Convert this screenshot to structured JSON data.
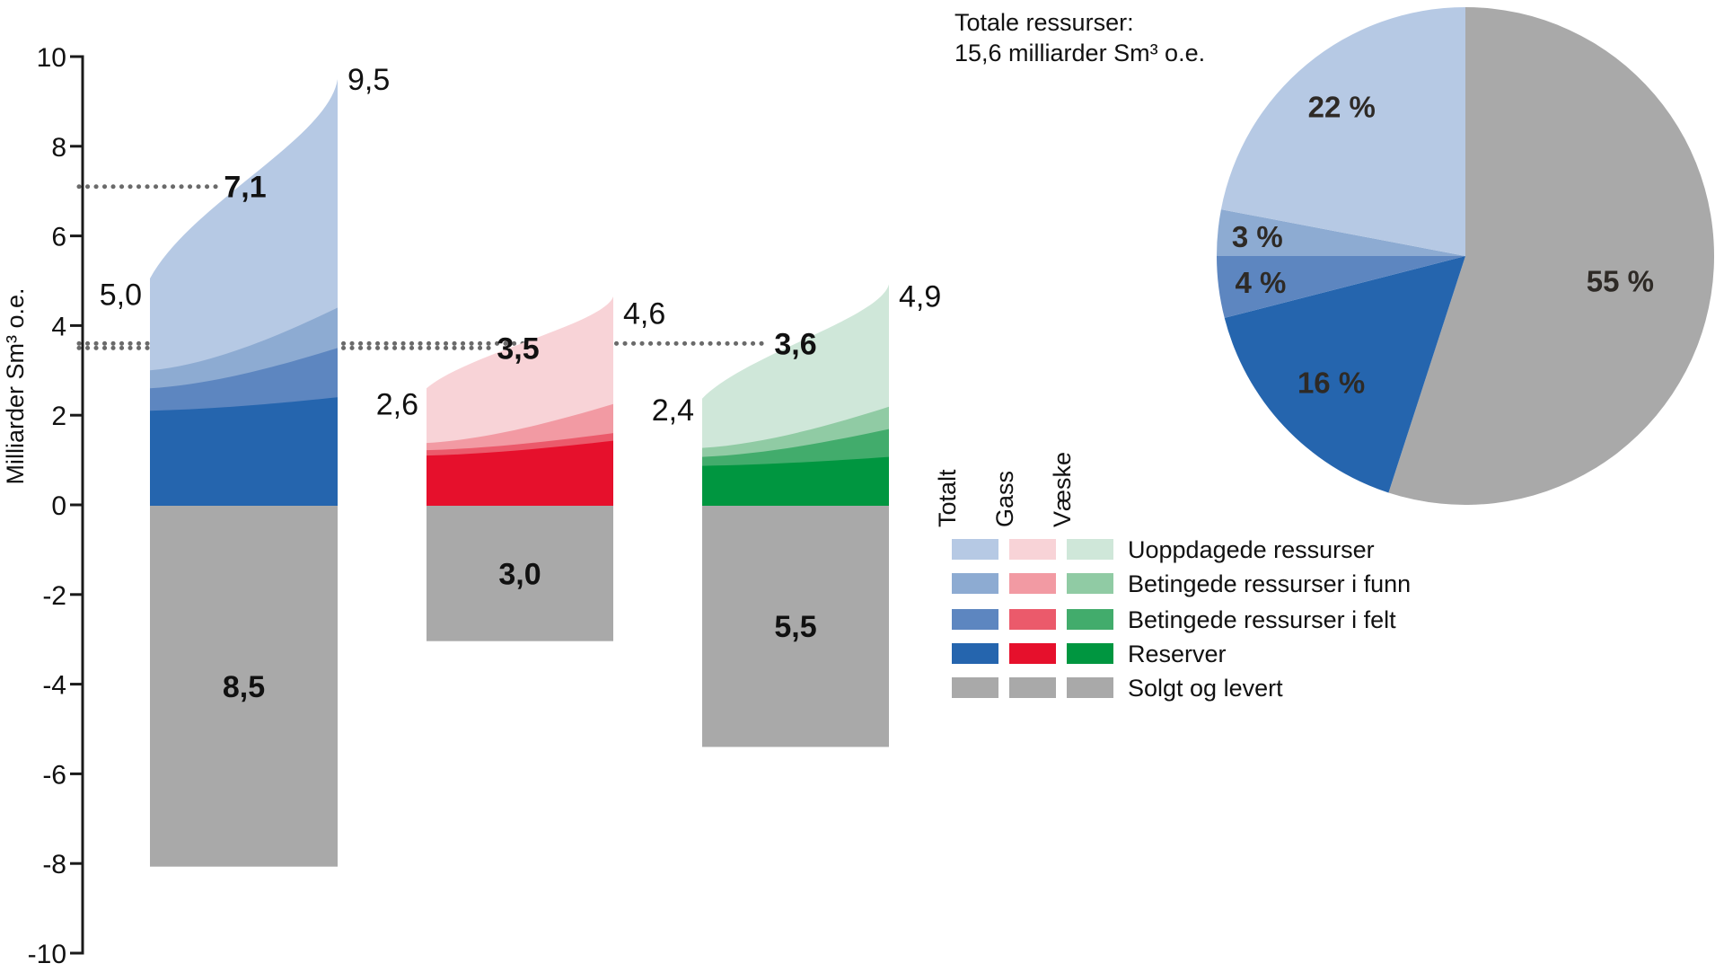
{
  "pie": {
    "title_line1": "Totale ressurser:",
    "title_line2": "15,6 milliarder Sm³ o.e.",
    "total_value": "15,6",
    "slices": [
      {
        "name": "Solgt og levert",
        "label": "55 %",
        "value": 55,
        "color": "#a9a9a9"
      },
      {
        "name": "Reserver",
        "label": "16 %",
        "value": 16,
        "color": "#2565ae"
      },
      {
        "name": "Betingede ressurser i felt",
        "label": "4 %",
        "value": 4,
        "color": "#5d86c0"
      },
      {
        "name": "Betingede ressurser i funn",
        "label": "3 %",
        "value": 3,
        "color": "#8dabd2"
      },
      {
        "name": "Uoppdagede ressurser",
        "label": "22 %",
        "value": 22,
        "color": "#b6c9e4"
      }
    ]
  },
  "legend": {
    "columns": [
      "Totalt",
      "Gass",
      "Væske"
    ],
    "rows": [
      {
        "label": "Uoppdagede ressurser",
        "colors": [
          "#b6c9e4",
          "#f8d3d7",
          "#cfe7d9"
        ]
      },
      {
        "label": "Betingede ressurser i funn",
        "colors": [
          "#8dabd2",
          "#f29aa3",
          "#90cba4"
        ]
      },
      {
        "label": "Betingede ressurser i felt",
        "colors": [
          "#5d86c0",
          "#eb5a6b",
          "#42ac6c"
        ]
      },
      {
        "label": "Reserver",
        "colors": [
          "#2565ae",
          "#e6102c",
          "#009640"
        ]
      },
      {
        "label": "Solgt og levert",
        "colors": [
          "#a9a9a9",
          "#a9a9a9",
          "#a9a9a9"
        ]
      }
    ]
  },
  "chart_data": {
    "type": "area",
    "ylabel": "Milliarder Sm³ o.e.",
    "y_axis": {
      "label": "Milliarder Sm³ o.e.",
      "min": -10,
      "max": 10,
      "step": 2,
      "tick_values": [
        10,
        8,
        6,
        4,
        2,
        0,
        -2,
        -4,
        -6,
        -8,
        -10
      ],
      "tick_labels": [
        "10",
        "8",
        "6",
        "4",
        "2",
        "0",
        "-2",
        "-4",
        "-6",
        "-8",
        "-10"
      ]
    },
    "dotted_line_color": "#6a6a6a",
    "sold_color": "#a9a9a9",
    "groups": [
      {
        "id": "totalt",
        "name": "Totalt",
        "low": 5.0,
        "low_label": "5,0",
        "expected": 7.1,
        "expected_label": "7,1",
        "high": 9.5,
        "high_label": "9,5",
        "sold": 8.5,
        "sold_label": "8,5",
        "layers_left": {
          "reserver": 2.1,
          "felt": 2.6,
          "funn": 3.0,
          "total": 5.05
        },
        "layers_right": {
          "reserver": 2.4,
          "felt": 3.5,
          "funn": 4.4,
          "total": 9.5
        },
        "colors": {
          "uoppdagede": "#b6c9e4",
          "funn": "#8dabd2",
          "felt": "#5d86c0",
          "reserver": "#2565ae"
        }
      },
      {
        "id": "gass",
        "name": "Gass",
        "low": 2.6,
        "low_label": "2,6",
        "expected": 3.5,
        "expected_label": "3,5",
        "high": 4.6,
        "high_label": "4,6",
        "sold": 3.0,
        "sold_label": "3,0",
        "layers_left": {
          "reserver": 1.1,
          "felt": 1.22,
          "funn": 1.38,
          "total": 2.6
        },
        "layers_right": {
          "reserver": 1.43,
          "felt": 1.6,
          "funn": 2.25,
          "total": 4.65
        },
        "colors": {
          "uoppdagede": "#f8d3d7",
          "funn": "#f29aa3",
          "felt": "#eb5a6b",
          "reserver": "#e6102c"
        }
      },
      {
        "id": "vaeske",
        "name": "Væske",
        "low": 2.4,
        "low_label": "2,4",
        "expected": 3.6,
        "expected_label": "3,6",
        "high": 4.9,
        "high_label": "4,9",
        "sold": 5.5,
        "sold_label": "5,5",
        "layers_left": {
          "reserver": 0.87,
          "felt": 1.07,
          "funn": 1.27,
          "total": 2.37
        },
        "layers_right": {
          "reserver": 1.07,
          "felt": 1.69,
          "funn": 2.19,
          "total": 4.92
        },
        "colors": {
          "uoppdagede": "#cfe7d9",
          "funn": "#90cba4",
          "felt": "#42ac6c",
          "reserver": "#009640"
        }
      }
    ]
  }
}
